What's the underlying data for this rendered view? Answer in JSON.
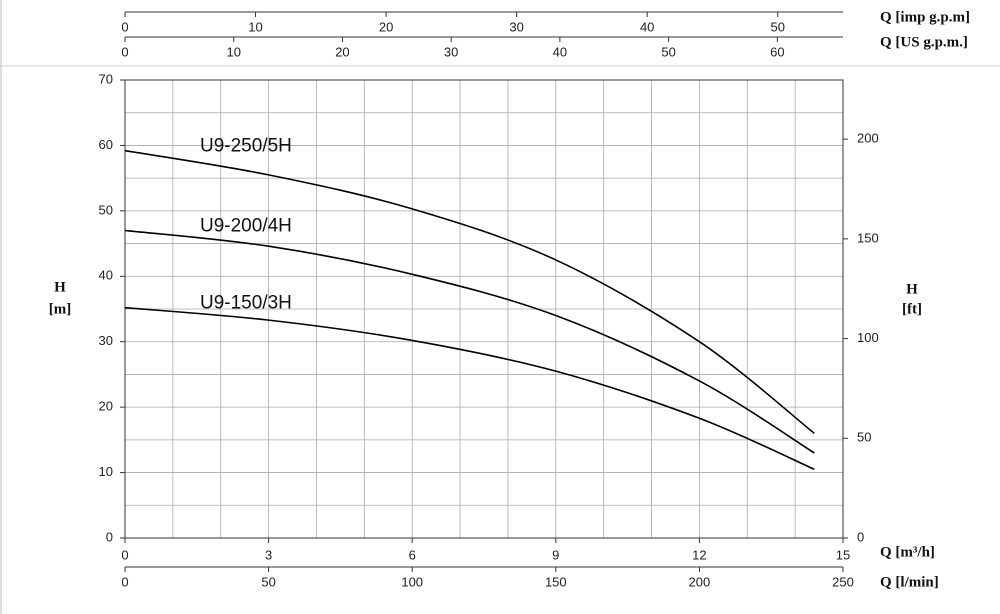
{
  "chart_data": {
    "type": "line",
    "xlabel": "Q [m³/h]",
    "xlim": [
      0,
      15
    ],
    "xticks": [
      0,
      3,
      6,
      9,
      12,
      15
    ],
    "ylabel": [
      "H",
      "[m]"
    ],
    "ylim": [
      0,
      70
    ],
    "yticks": [
      0,
      10,
      20,
      30,
      40,
      50,
      60,
      70
    ],
    "y2label": [
      "H",
      "[ft]"
    ],
    "y2lim": [
      0,
      229.66
    ],
    "y2ticks": [
      0,
      50,
      100,
      150,
      200
    ],
    "grid": true,
    "grid_x": [
      0,
      1,
      2,
      3,
      4,
      5,
      6,
      7,
      8,
      9,
      10,
      11,
      12,
      13,
      14,
      15
    ],
    "grid_y": [
      0,
      5,
      10,
      15,
      20,
      25,
      30,
      35,
      40,
      45,
      50,
      55,
      60,
      65,
      70
    ],
    "extra_x_axes": [
      {
        "label": "Q [l/min]",
        "position": "bottom",
        "lim": [
          0,
          250
        ],
        "ticks": [
          0,
          50,
          100,
          150,
          200,
          250
        ]
      },
      {
        "label": "Q [imp g.p.m]",
        "position": "top",
        "lim": [
          0,
          55.0
        ],
        "ticks": [
          0,
          10,
          20,
          30,
          40,
          50
        ]
      },
      {
        "label": "Q [US g.p.m.]",
        "position": "top",
        "lim": [
          0,
          66.04
        ],
        "ticks": [
          0,
          10,
          20,
          30,
          40,
          50,
          60
        ]
      }
    ],
    "series": [
      {
        "name": "U9-250/5H",
        "color": "#000000",
        "x": [
          0,
          3,
          6,
          9,
          12,
          14.4
        ],
        "values": [
          59.2,
          55.5,
          50.3,
          42.5,
          30,
          16
        ]
      },
      {
        "name": "U9-200/4H",
        "color": "#000000",
        "x": [
          0,
          3,
          6,
          9,
          12,
          14.4
        ],
        "values": [
          47,
          44.6,
          40.3,
          34,
          24,
          13
        ]
      },
      {
        "name": "U9-150/3H",
        "color": "#000000",
        "x": [
          0,
          3,
          6,
          9,
          12,
          14.4
        ],
        "values": [
          35.2,
          33.3,
          30.2,
          25.5,
          18.3,
          10.5
        ]
      }
    ]
  }
}
